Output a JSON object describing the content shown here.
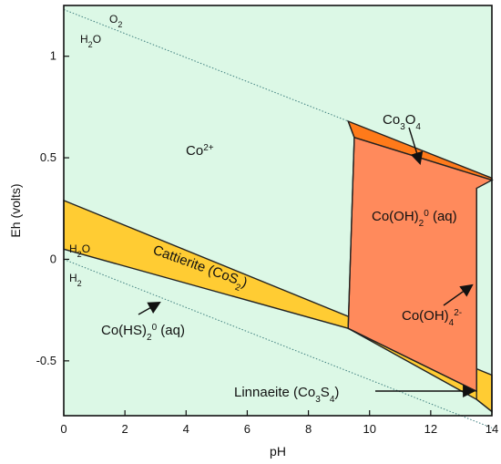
{
  "chart_data": {
    "type": "area",
    "title": "",
    "xlabel": "pH",
    "ylabel": "Eh (volts)",
    "xlim": [
      0,
      14
    ],
    "ylim": [
      -0.77,
      1.25
    ],
    "xticks": [
      0,
      2,
      4,
      6,
      8,
      10,
      12,
      14
    ],
    "yticks": [
      -0.5,
      0,
      0.5,
      1
    ],
    "xtick_labels": [
      "0",
      "2",
      "4",
      "6",
      "8",
      "10",
      "12",
      "14"
    ],
    "ytick_labels": [
      "-0.5",
      "0",
      "0.5",
      "1"
    ],
    "grid": false,
    "colors": {
      "background": "#dcf8e6",
      "cattierite": "#ffcc33",
      "co3o4": "#ff7a1a",
      "coOH2": "#ff8a5c",
      "line": "#222222",
      "water_line": "#3f7f7f"
    },
    "water_lines": [
      {
        "name": "O2/H2O",
        "x": [
          0,
          9.3
        ],
        "y": [
          1.23,
          0.68
        ]
      },
      {
        "name": "H2O/H2",
        "x": [
          0,
          14
        ],
        "y": [
          0.0,
          -0.83
        ]
      }
    ],
    "regions": [
      {
        "name": "Cattierite (CoS2)",
        "polygon": [
          [
            0,
            0.29
          ],
          [
            14,
            -0.57
          ],
          [
            14,
            -0.75
          ],
          [
            13.5,
            -0.69
          ],
          [
            9.3,
            -0.34
          ],
          [
            0,
            0.05
          ]
        ]
      },
      {
        "name": "Co3O4",
        "polygon": [
          [
            9.3,
            0.68
          ],
          [
            14,
            0.4
          ],
          [
            14,
            0.39
          ],
          [
            9.5,
            0.6
          ]
        ]
      },
      {
        "name": "Co(OH)2 0 (aq)",
        "polygon": [
          [
            9.5,
            0.6
          ],
          [
            14,
            0.39
          ],
          [
            13.5,
            0.35
          ],
          [
            13.5,
            -0.65
          ],
          [
            9.3,
            -0.34
          ]
        ]
      }
    ],
    "labels": {
      "o2": "O",
      "o2_sub": "2",
      "h2o_top": "H",
      "h2o_top_sub": "2",
      "h2o_top_tail": "O",
      "co2plus": "Co",
      "co2plus_sup": "2+",
      "co3o4": "Co",
      "co3o4_sub1": "3",
      "co3o4_mid": "O",
      "co3o4_sub2": "4",
      "cooh2": "Co(OH)",
      "cooh2_sub": "2",
      "cooh2_sup": "0",
      "cooh2_tail": " (aq)",
      "cattierite": "Cattierite (CoS",
      "cattierite_sub": "2",
      "cattierite_tail": ")",
      "h2o_mid": "H",
      "h2o_mid_sub": "2",
      "h2o_mid_tail": "O",
      "h2_mid": "H",
      "h2_mid_sub": "2",
      "cohs": "Co(HS)",
      "cohs_sub": "2",
      "cohs_sup": "0",
      "cohs_tail": " (aq)",
      "cooh4": "Co(OH)",
      "cooh4_sub": "4",
      "cooh4_sup": "2-",
      "linnaeite": "Linnaeite (Co",
      "linnaeite_sub": "3",
      "linnaeite_mid": "S",
      "linnaeite_sub2": "4",
      "linnaeite_tail": ")"
    }
  }
}
